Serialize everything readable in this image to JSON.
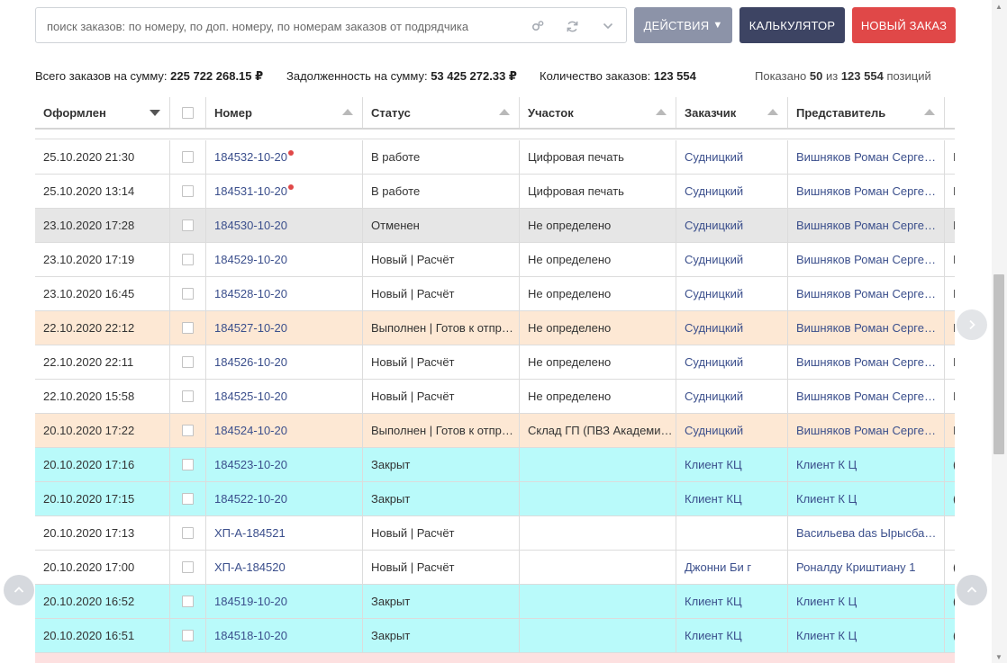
{
  "search": {
    "placeholder": "поиск заказов: по номеру, по доп. номеру, по номерам заказов от подрядчика"
  },
  "toolbar": {
    "actions_label": "ДЕЙСТВИЯ",
    "calculator_label": "КАЛЬКУЛЯТОР",
    "new_order_label": "НОВЫЙ ЗАКАЗ"
  },
  "summary": {
    "total_label": "Всего заказов на сумму:",
    "total_value": "225 722 268.15 ₽",
    "debt_label": "Задолженность на сумму:",
    "debt_value": "53 425 272.33 ₽",
    "count_label": "Количество заказов:",
    "count_value": "123 554",
    "shown_prefix": "Показано",
    "shown_count": "50",
    "shown_of": "из",
    "shown_total": "123 554",
    "shown_suffix": "позиций"
  },
  "table": {
    "headers": [
      "Оформлен",
      "",
      "Номер",
      "Статус",
      "Участок",
      "Заказчик",
      "Представитель"
    ],
    "rows": [
      {
        "date": "25.10.2020 21:30",
        "number": "184532-10-20",
        "status": "В работе",
        "area": "Цифровая печать",
        "customer": "Судницкий",
        "rep": "Вишняков Роман Серге…",
        "last": "I"
      },
      {
        "date": "25.10.2020 13:14",
        "number": "184531-10-20",
        "status": "В работе",
        "area": "Цифровая печать",
        "customer": "Судницкий",
        "rep": "Вишняков Роман Серге…",
        "last": "I"
      },
      {
        "date": "23.10.2020 17:28",
        "number": "184530-10-20",
        "status": "Отменен",
        "area": "Не определено",
        "customer": "Судницкий",
        "rep": "Вишняков Роман Серге…",
        "last": "I"
      },
      {
        "date": "23.10.2020 17:19",
        "number": "184529-10-20",
        "status": "Новый | Расчёт",
        "area": "Не определено",
        "customer": "Судницкий",
        "rep": "Вишняков Роман Серге…",
        "last": "I"
      },
      {
        "date": "23.10.2020 16:45",
        "number": "184528-10-20",
        "status": "Новый | Расчёт",
        "area": "Не определено",
        "customer": "Судницкий",
        "rep": "Вишняков Роман Серге…",
        "last": "I"
      },
      {
        "date": "22.10.2020 22:12",
        "number": "184527-10-20",
        "status": "Выполнен | Готов к отпр…",
        "area": "Не определено",
        "customer": "Судницкий",
        "rep": "Вишняков Роман Серге…",
        "last": "I"
      },
      {
        "date": "22.10.2020 22:11",
        "number": "184526-10-20",
        "status": "Новый | Расчёт",
        "area": "Не определено",
        "customer": "Судницкий",
        "rep": "Вишняков Роман Серге…",
        "last": "I"
      },
      {
        "date": "22.10.2020 15:58",
        "number": "184525-10-20",
        "status": "Новый | Расчёт",
        "area": "Не определено",
        "customer": "Судницкий",
        "rep": "Вишняков Роман Серге…",
        "last": "I"
      },
      {
        "date": "20.10.2020 17:22",
        "number": "184524-10-20",
        "status": "Выполнен | Готов к отпр…",
        "area": "Склад ГП (ПВЗ Академи…",
        "customer": "Судницкий",
        "rep": "Вишняков Роман Серге…",
        "last": "I"
      },
      {
        "date": "20.10.2020 17:16",
        "number": "184523-10-20",
        "status": "Закрыт",
        "area": "",
        "customer": "Клиент КЦ",
        "rep": "Клиент К Ц",
        "last": "("
      },
      {
        "date": "20.10.2020 17:15",
        "number": "184522-10-20",
        "status": "Закрыт",
        "area": "",
        "customer": "Клиент КЦ",
        "rep": "Клиент К Ц",
        "last": "("
      },
      {
        "date": "20.10.2020 17:13",
        "number": "ХП-А-184521",
        "status": "Новый | Расчёт",
        "area": "",
        "customer": "",
        "rep": "Васильева das Ырысба…",
        "last": ""
      },
      {
        "date": "20.10.2020 17:00",
        "number": "ХП-А-184520",
        "status": "Новый | Расчёт",
        "area": "",
        "customer": "Джонни Би г",
        "rep": "Роналду Криштиану 1",
        "last": "("
      },
      {
        "date": "20.10.2020 16:52",
        "number": "184519-10-20",
        "status": "Закрыт",
        "area": "",
        "customer": "Клиент КЦ",
        "rep": "Клиент К Ц",
        "last": "("
      },
      {
        "date": "20.10.2020 16:51",
        "number": "184518-10-20",
        "status": "Закрыт",
        "area": "",
        "customer": "Клиент КЦ",
        "rep": "Клиент К Ц",
        "last": "("
      }
    ]
  },
  "colors": {
    "row_default": "#ffffff",
    "row_cancelled": "#e6e6e6",
    "row_done": "#fde8d4",
    "row_closed": "#b9fafa",
    "row_partial": "#fde0e0",
    "link": "#3b4f8c",
    "danger": "#e04848"
  }
}
